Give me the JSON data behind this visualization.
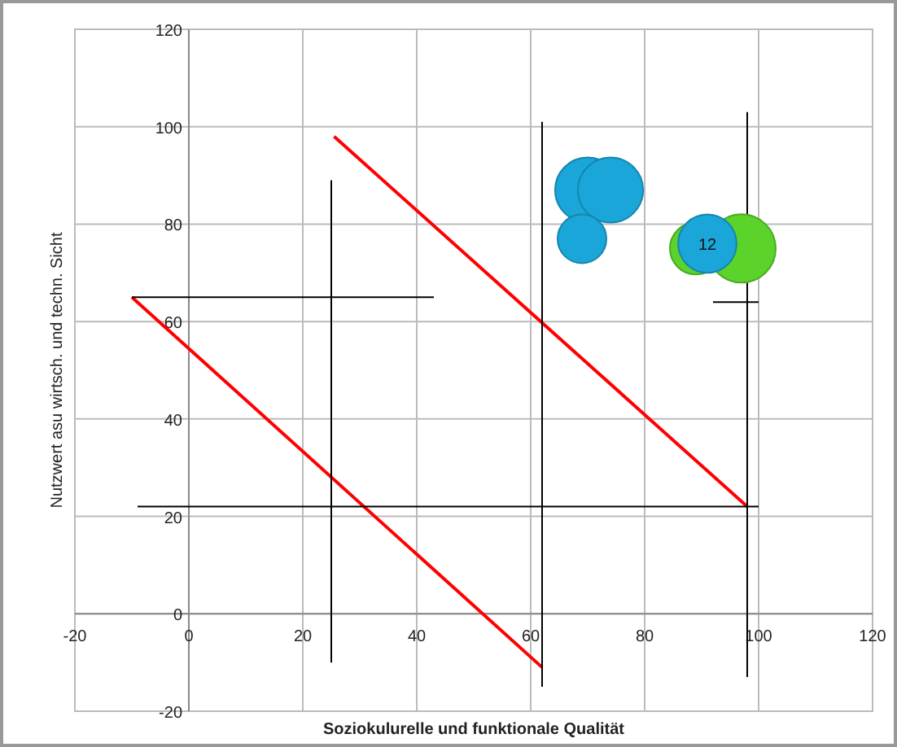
{
  "chart_data": {
    "type": "line",
    "xlabel": "Soziokulurelle und funktionale Qualität",
    "ylabel": "Nutzwert asu wirtsch. und techn. Sicht",
    "xlim": [
      -20,
      120
    ],
    "xticks": [
      -20,
      0,
      20,
      40,
      60,
      80,
      100,
      120
    ],
    "ylim": [
      -20,
      120
    ],
    "yticks": [
      -20,
      0,
      20,
      40,
      60,
      80,
      100,
      120
    ],
    "grid": true,
    "line_style": "solid",
    "series": [
      {
        "color": "#ff0000",
        "x": [
          -10,
          62
        ],
        "values": [
          65,
          -11
        ]
      },
      {
        "color": "#ff0000",
        "x": [
          25.5,
          98
        ],
        "values": [
          98,
          22
        ]
      },
      {
        "color": "#000000",
        "x": [
          -10,
          43
        ],
        "values": [
          65,
          65
        ]
      },
      {
        "color": "#000000",
        "x": [
          25,
          25
        ],
        "values": [
          89,
          -10
        ]
      },
      {
        "color": "#000000",
        "x": [
          -9,
          100
        ],
        "values": [
          22,
          22
        ]
      },
      {
        "color": "#000000",
        "x": [
          62,
          62
        ],
        "values": [
          101,
          -15
        ]
      },
      {
        "color": "#000000",
        "x": [
          98,
          98
        ],
        "values": [
          103,
          -13
        ]
      },
      {
        "color": "#000000",
        "x": [
          92,
          100
        ],
        "values": [
          64,
          64
        ]
      },
      {
        "type": "bubble",
        "color": "#5cd32a",
        "x": [
          89,
          97
        ],
        "values": [
          75,
          75
        ],
        "sizes": [
          0.58,
          1
        ]
      },
      {
        "type": "bubble",
        "color": "#1aa6d8",
        "x": [
          70,
          74,
          69,
          91
        ],
        "values": [
          87,
          87,
          77,
          76
        ],
        "sizes": [
          0.91,
          0.91,
          0.51,
          0.73
        ]
      }
    ],
    "annotations": [
      {
        "text": "12",
        "x": 91,
        "y": 76
      }
    ]
  }
}
